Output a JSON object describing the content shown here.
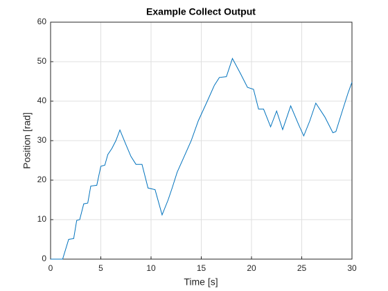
{
  "chart_data": {
    "type": "line",
    "title": "Example Collect Output",
    "x_label": "Time [s]",
    "y_label": "Position [rad]",
    "x": [
      0,
      1.2,
      1.8,
      2.3,
      2.6,
      2.9,
      3.3,
      3.7,
      4.0,
      4.6,
      5.0,
      5.4,
      5.7,
      6.1,
      6.5,
      6.9,
      7.5,
      8.0,
      8.5,
      9.1,
      9.7,
      10.4,
      11.1,
      11.7,
      12.1,
      12.6,
      13.3,
      14.0,
      14.7,
      15.6,
      16.3,
      16.8,
      17.5,
      18.1,
      18.9,
      19.6,
      20.2,
      20.7,
      21.2,
      21.9,
      22.5,
      23.1,
      23.9,
      24.7,
      25.2,
      25.8,
      26.4,
      27.3,
      28.1,
      28.4,
      29.1,
      29.6,
      30
    ],
    "series": [
      {
        "name": "Position",
        "color": "#0072bd",
        "values": [
          0,
          0,
          5,
          5.2,
          9.8,
          10,
          14,
          14.2,
          18.5,
          18.7,
          23.5,
          23.8,
          26.5,
          28,
          30,
          32.7,
          29,
          26,
          24,
          24,
          18,
          17.6,
          11.2,
          15,
          18,
          22,
          26,
          30,
          35,
          40,
          44,
          46,
          46.2,
          50.8,
          47,
          43.5,
          43,
          38,
          38,
          33.5,
          37.5,
          32.8,
          38.8,
          34,
          31.2,
          35,
          39.5,
          36,
          32,
          32.3,
          38,
          42,
          44.8
        ]
      }
    ],
    "xlim": [
      0,
      30
    ],
    "xticks": [
      0,
      5,
      10,
      15,
      20,
      25,
      30
    ],
    "ylim": [
      0,
      60
    ],
    "yticks": [
      0,
      10,
      20,
      30,
      40,
      50,
      60
    ],
    "grid": true
  }
}
